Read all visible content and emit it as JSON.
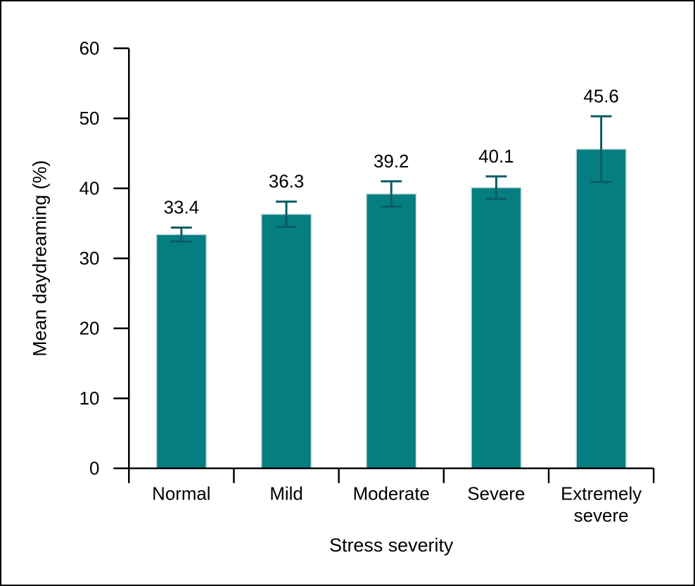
{
  "chart_data": {
    "type": "bar",
    "title": "",
    "xlabel": "Stress severity",
    "ylabel": "Mean daydreaming (%)",
    "categories": [
      "Normal",
      "Mild",
      "Moderate",
      "Severe",
      "Extremely severe"
    ],
    "category_lines": [
      [
        "Normal"
      ],
      [
        "Mild"
      ],
      [
        "Moderate"
      ],
      [
        "Severe"
      ],
      [
        "Extremely",
        "severe"
      ]
    ],
    "values": [
      33.4,
      36.3,
      39.2,
      40.1,
      45.6
    ],
    "value_labels": [
      "33.4",
      "36.3",
      "39.2",
      "40.1",
      "45.6"
    ],
    "errors": [
      1.0,
      1.8,
      1.8,
      1.6,
      4.7
    ],
    "ylim": [
      0,
      60
    ],
    "yticks": [
      0,
      10,
      20,
      30,
      40,
      50,
      60
    ],
    "ytick_labels": [
      "0",
      "10",
      "20",
      "30",
      "40",
      "50",
      "60"
    ],
    "grid": false,
    "legend": "none",
    "bar_color": "#057e82",
    "bar_border_color": "#c6d9d9",
    "error_bar_color": "#0a5c64",
    "axis_color": "#000000",
    "text_color": "#000000",
    "background": "#ffffff",
    "frame_color": "#000000"
  }
}
